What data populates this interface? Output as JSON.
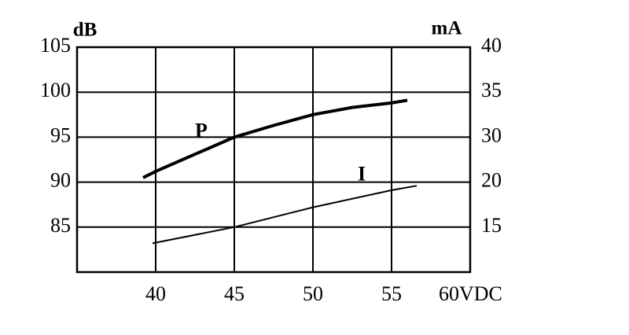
{
  "chart_data": {
    "type": "line",
    "y_unit": "dB",
    "y2_unit": "mA",
    "xlim": [
      35,
      60
    ],
    "xticks": [
      40,
      45,
      50,
      55,
      {
        "value": 60,
        "label": "60VDC"
      }
    ],
    "ylim": [
      80,
      105
    ],
    "yticks": [
      85,
      90,
      95,
      100,
      105
    ],
    "y2lim": [
      10,
      40
    ],
    "y2ticks": [
      15,
      20,
      30,
      35,
      40
    ],
    "grid": true,
    "series": [
      {
        "name": "P",
        "color": "#000000",
        "x": [
          39.2,
          40,
          45,
          47.5,
          50,
          52.5,
          55,
          56
        ],
        "values": [
          90.5,
          91.2,
          95.0,
          96.3,
          97.5,
          98.3,
          98.8,
          99.1
        ]
      },
      {
        "name": "I",
        "color": "#000000",
        "axis": "y2",
        "x": [
          39.8,
          45,
          50,
          55,
          56.6
        ],
        "values": [
          13.2,
          15.0,
          17.2,
          19.1,
          19.6
        ]
      }
    ]
  }
}
